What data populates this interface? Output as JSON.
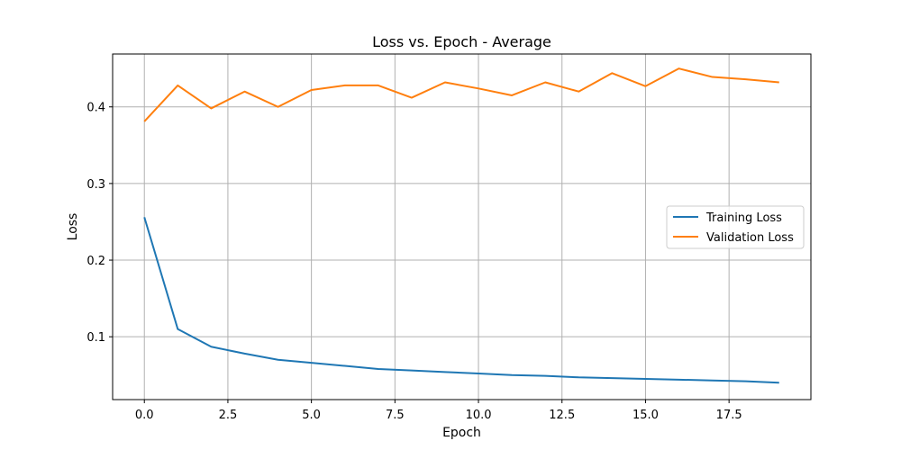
{
  "chart_data": {
    "type": "line",
    "title": "Loss vs. Epoch - Average",
    "xlabel": "Epoch",
    "ylabel": "Loss",
    "xlim": [
      -0.95,
      19.95
    ],
    "ylim": [
      0.018,
      0.469
    ],
    "xticks": [
      0.0,
      2.5,
      5.0,
      7.5,
      10.0,
      12.5,
      15.0,
      17.5
    ],
    "xtick_labels": [
      "0.0",
      "2.5",
      "5.0",
      "7.5",
      "10.0",
      "12.5",
      "15.0",
      "17.5"
    ],
    "yticks": [
      0.1,
      0.2,
      0.3,
      0.4
    ],
    "ytick_labels": [
      "0.1",
      "0.2",
      "0.3",
      "0.4"
    ],
    "grid": true,
    "legend": "center-right",
    "x": [
      0,
      1,
      2,
      3,
      4,
      5,
      6,
      7,
      8,
      9,
      10,
      11,
      12,
      13,
      14,
      15,
      16,
      17,
      18,
      19
    ],
    "series": [
      {
        "name": "Training Loss",
        "color": "#1f77b4",
        "values": [
          0.256,
          0.11,
          0.087,
          0.078,
          0.07,
          0.066,
          0.062,
          0.058,
          0.056,
          0.054,
          0.052,
          0.05,
          0.049,
          0.047,
          0.046,
          0.045,
          0.044,
          0.043,
          0.042,
          0.04
        ]
      },
      {
        "name": "Validation Loss",
        "color": "#ff7f0e",
        "values": [
          0.381,
          0.428,
          0.398,
          0.42,
          0.4,
          0.422,
          0.428,
          0.428,
          0.412,
          0.432,
          0.424,
          0.415,
          0.432,
          0.42,
          0.444,
          0.427,
          0.45,
          0.439,
          0.436,
          0.432
        ]
      }
    ]
  }
}
